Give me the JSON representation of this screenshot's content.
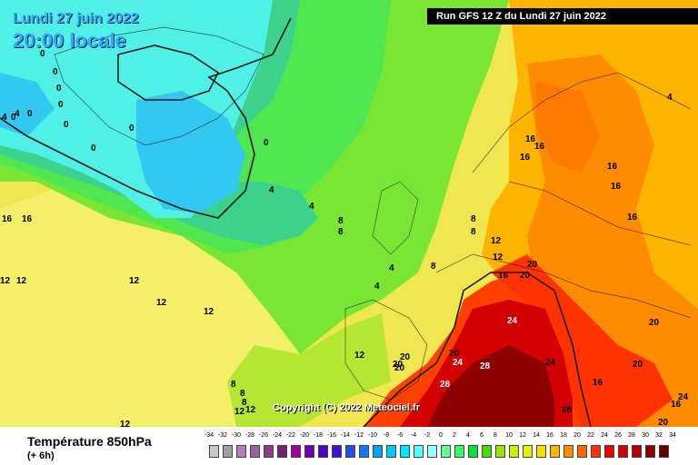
{
  "map": {
    "date_label": "Lundi 27 juin 2022",
    "time_label": "20:00 locale",
    "run_label": "Run GFS 12 Z du Lundi 27 juin 2022",
    "copyright": "Copyright (C) 2022 Meteociel.fr",
    "isotherm_labels": [
      "0",
      "0",
      "0",
      "0",
      "0",
      "0",
      "0",
      "0",
      "0",
      "0",
      "4",
      "4",
      "4",
      "4",
      "4",
      "4",
      "4",
      "8",
      "8",
      "8",
      "8",
      "8",
      "8",
      "8",
      "8",
      "12",
      "12",
      "12",
      "12",
      "12",
      "12",
      "12",
      "12",
      "12",
      "16",
      "16",
      "16",
      "16",
      "16",
      "16",
      "16",
      "16",
      "16",
      "16",
      "16",
      "20",
      "20",
      "20",
      "20",
      "20",
      "20",
      "20",
      "20",
      "24",
      "24",
      "24",
      "28",
      "28",
      "28",
      "24",
      "20",
      "12",
      "12"
    ]
  },
  "footer": {
    "title": "Température 850hPa",
    "subtitle": "(+ 6h)"
  },
  "legend": {
    "ticks": [
      "-34",
      "-32",
      "-30",
      "-28",
      "-26",
      "-24",
      "-22",
      "-20",
      "-18",
      "-16",
      "-14",
      "-12",
      "-10",
      "-8",
      "-6",
      "-4",
      "-2",
      "0",
      "2",
      "4",
      "6",
      "8",
      "10",
      "12",
      "14",
      "16",
      "18",
      "20",
      "22",
      "24",
      "26",
      "28",
      "30",
      "32",
      "34"
    ],
    "colors": [
      "#c8c8c8",
      "#a0a0a0",
      "#b480b4",
      "#a060a0",
      "#8c3c8c",
      "#7a1e7a",
      "#a000a0",
      "#6e00b4",
      "#5000c8",
      "#3c14dc",
      "#2850e6",
      "#1478ff",
      "#00a0ff",
      "#00c8ff",
      "#00e6ff",
      "#50ffff",
      "#96ffff",
      "#64ff96",
      "#32ff64",
      "#00e632",
      "#46dc00",
      "#96e600",
      "#c8f000",
      "#ebf000",
      "#ffdc00",
      "#ffb400",
      "#ff8c00",
      "#ff6400",
      "#ff3200",
      "#f00000",
      "#d20000",
      "#b40000",
      "#8c0000",
      "#640000"
    ]
  }
}
